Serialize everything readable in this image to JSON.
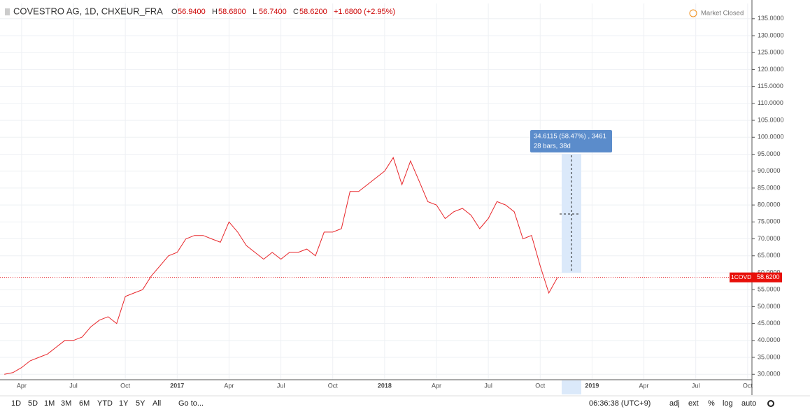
{
  "header": {
    "title": "COVESTRO AG, 1D, CHXEUR_FRA",
    "ohlc": [
      {
        "key": "O",
        "value": "56.9400"
      },
      {
        "key": "H",
        "value": "58.6800"
      },
      {
        "key": "L",
        "value": "56.7400"
      },
      {
        "key": "C",
        "value": "58.6200"
      }
    ],
    "change": "+1.6800 (+2.95%)",
    "status": "Market Closed"
  },
  "chart_data": {
    "type": "line",
    "categories": [
      null,
      null,
      "Apr",
      null,
      null,
      null,
      null,
      null,
      "Jul",
      null,
      null,
      null,
      null,
      null,
      "Oct",
      null,
      null,
      null,
      null,
      null,
      "2017",
      null,
      null,
      null,
      null,
      null,
      "Apr",
      null,
      null,
      null,
      null,
      null,
      "Jul",
      null,
      null,
      null,
      null,
      null,
      "Oct",
      null,
      null,
      null,
      null,
      null,
      "2018",
      null,
      null,
      null,
      null,
      null,
      "Apr",
      null,
      null,
      null,
      null,
      null,
      "Jul",
      null,
      null,
      null,
      null,
      null,
      "Oct",
      null,
      null,
      null,
      null,
      null,
      "2019",
      null,
      null,
      null,
      null,
      null,
      "Apr",
      null,
      null,
      null,
      null,
      null,
      "Jul",
      null,
      null,
      null,
      null,
      null,
      "Oct"
    ],
    "series": [
      {
        "name": "COVESTRO AG",
        "color": "#e8262a",
        "values": [
          30,
          30.5,
          32,
          34,
          35,
          36,
          38,
          40,
          40,
          41,
          44,
          46,
          47,
          45,
          53,
          54,
          55,
          59,
          62,
          65,
          66,
          70,
          71,
          71,
          70,
          69,
          75,
          72,
          68,
          66,
          64,
          66,
          64,
          66,
          66,
          67,
          65,
          72,
          72,
          73,
          84,
          84,
          86,
          88,
          90,
          94,
          86,
          93,
          87,
          81,
          80,
          76,
          78,
          79,
          77,
          73,
          76,
          81,
          80,
          78,
          70,
          71,
          62,
          54,
          58.62,
          null,
          null,
          null,
          null,
          null,
          null,
          null,
          null,
          null,
          null,
          null,
          null,
          null,
          null,
          null,
          null,
          null,
          null,
          null,
          null,
          null,
          null
        ]
      }
    ],
    "ylim": [
      28.4,
      139.5
    ],
    "yticks": [
      {
        "value": 30,
        "label": "30.0000"
      },
      {
        "value": 35,
        "label": "35.0000"
      },
      {
        "value": 40,
        "label": "40.0000"
      },
      {
        "value": 45,
        "label": "45.0000"
      },
      {
        "value": 50,
        "label": "50.0000"
      },
      {
        "value": 55,
        "label": "55.0000"
      },
      {
        "value": 60,
        "label": "60.0000"
      },
      {
        "value": 65,
        "label": "65.0000"
      },
      {
        "value": 70,
        "label": "70.0000"
      },
      {
        "value": 75,
        "label": "75.0000"
      },
      {
        "value": 80,
        "label": "80.0000"
      },
      {
        "value": 85,
        "label": "85.0000"
      },
      {
        "value": 90,
        "label": "90.0000"
      },
      {
        "value": 95,
        "label": "95.0000"
      },
      {
        "value": 100,
        "label": "100.0000"
      },
      {
        "value": 105,
        "label": "105.0000"
      },
      {
        "value": 110,
        "label": "110.0000"
      },
      {
        "value": 115,
        "label": "115.0000"
      },
      {
        "value": 120,
        "label": "120.0000"
      },
      {
        "value": 125,
        "label": "125.0000"
      },
      {
        "value": 130,
        "label": "130.0000"
      },
      {
        "value": 135,
        "label": "135.0000"
      }
    ],
    "grid": true,
    "last_price": {
      "name": "1COVD",
      "value": 58.62,
      "label": "58.6200"
    },
    "measure": {
      "line1": "34.6115 (58.47%) , 3461",
      "line2": "28 bars, 38d"
    }
  },
  "toolbar": {
    "ranges": [
      "1D",
      "5D",
      "1M",
      "3M",
      "6M",
      "YTD",
      "1Y",
      "5Y",
      "All"
    ],
    "goto": "Go to...",
    "clock": "06:36:38 (UTC+9)",
    "options": [
      "adj",
      "ext",
      "%",
      "log",
      "auto"
    ]
  }
}
